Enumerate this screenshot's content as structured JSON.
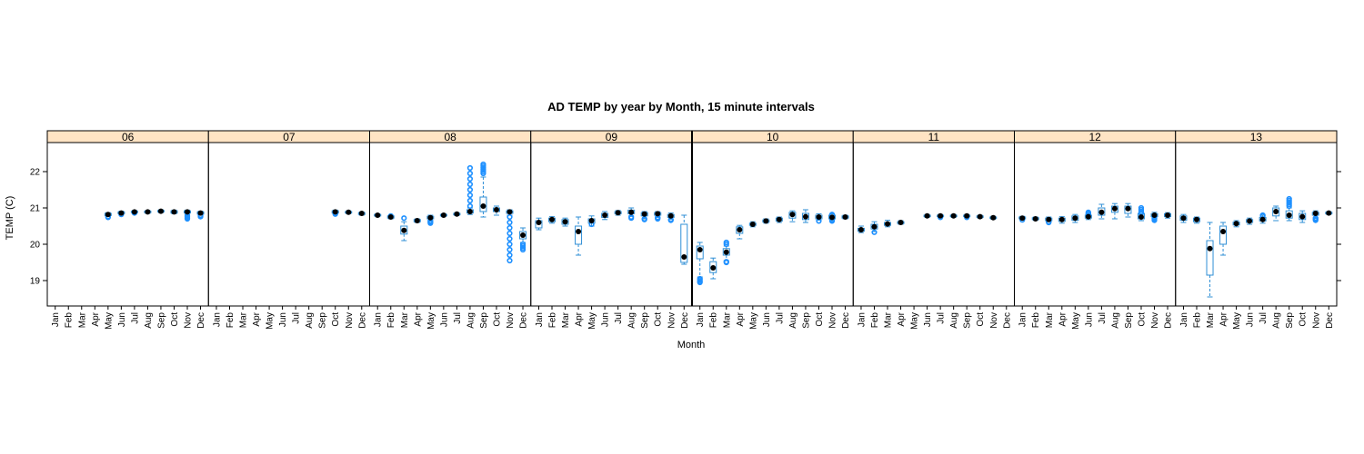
{
  "chart_data": {
    "type": "box",
    "title": "AD TEMP by year by Month, 15 minute intervals",
    "xlabel": "Month",
    "ylabel": "TEMP (C)",
    "yticks": [
      19,
      20,
      21,
      22
    ],
    "ylim": [
      18.3,
      22.8
    ],
    "months": [
      "Jan",
      "Feb",
      "Mar",
      "Apr",
      "May",
      "Jun",
      "Jul",
      "Aug",
      "Sep",
      "Oct",
      "Nov",
      "Dec"
    ],
    "colors": {
      "box": "#2f8fd6",
      "outlier": "#1e90ff",
      "median": "#000000",
      "strip_fill": "#ffe4c4",
      "border": "#000000"
    },
    "panels": [
      {
        "label": "06",
        "boxes": [
          {
            "m": 5,
            "med": 20.82,
            "q1": 20.79,
            "q3": 20.85,
            "wl": 20.76,
            "wh": 20.87,
            "out": [
              20.74,
              20.76
            ]
          },
          {
            "m": 6,
            "med": 20.86,
            "q1": 20.84,
            "q3": 20.89,
            "wl": 20.82,
            "wh": 20.91,
            "out": [
              20.82
            ]
          },
          {
            "m": 7,
            "med": 20.89,
            "q1": 20.87,
            "q3": 20.91,
            "wl": 20.85,
            "wh": 20.93,
            "out": [
              20.86
            ]
          },
          {
            "m": 8,
            "med": 20.89,
            "q1": 20.87,
            "q3": 20.91,
            "wl": 20.85,
            "wh": 20.93,
            "out": []
          },
          {
            "m": 9,
            "med": 20.91,
            "q1": 20.89,
            "q3": 20.93,
            "wl": 20.87,
            "wh": 20.95,
            "out": []
          },
          {
            "m": 10,
            "med": 20.89,
            "q1": 20.86,
            "q3": 20.92,
            "wl": 20.84,
            "wh": 20.94,
            "out": []
          },
          {
            "m": 11,
            "med": 20.89,
            "q1": 20.86,
            "q3": 20.92,
            "wl": 20.82,
            "wh": 20.94,
            "out": [
              20.7,
              20.72,
              20.74,
              20.76,
              20.78,
              20.8
            ]
          },
          {
            "m": 12,
            "med": 20.86,
            "q1": 20.83,
            "q3": 20.89,
            "wl": 20.8,
            "wh": 20.91,
            "out": [
              20.76,
              20.78,
              20.8
            ]
          }
        ]
      },
      {
        "label": "07",
        "boxes": [
          {
            "m": 10,
            "med": 20.89,
            "q1": 20.86,
            "q3": 20.92,
            "wl": 20.84,
            "wh": 20.94,
            "out": [
              20.83,
              20.85
            ]
          },
          {
            "m": 11,
            "med": 20.88,
            "q1": 20.86,
            "q3": 20.9,
            "wl": 20.84,
            "wh": 20.92,
            "out": []
          },
          {
            "m": 12,
            "med": 20.85,
            "q1": 20.82,
            "q3": 20.87,
            "wl": 20.8,
            "wh": 20.89,
            "out": []
          }
        ]
      },
      {
        "label": "08",
        "boxes": [
          {
            "m": 1,
            "med": 20.8,
            "q1": 20.78,
            "q3": 20.82,
            "wl": 20.76,
            "wh": 20.84,
            "out": []
          },
          {
            "m": 2,
            "med": 20.75,
            "q1": 20.72,
            "q3": 20.78,
            "wl": 20.7,
            "wh": 20.8,
            "out": [
              20.78
            ]
          },
          {
            "m": 3,
            "med": 20.38,
            "q1": 20.28,
            "q3": 20.5,
            "wl": 20.1,
            "wh": 20.62,
            "out": [
              20.72
            ]
          },
          {
            "m": 4,
            "med": 20.65,
            "q1": 20.62,
            "q3": 20.68,
            "wl": 20.6,
            "wh": 20.7,
            "out": []
          },
          {
            "m": 5,
            "med": 20.73,
            "q1": 20.7,
            "q3": 20.77,
            "wl": 20.66,
            "wh": 20.8,
            "out": [
              20.58,
              20.6,
              20.62,
              20.64
            ]
          },
          {
            "m": 6,
            "med": 20.8,
            "q1": 20.78,
            "q3": 20.82,
            "wl": 20.76,
            "wh": 20.84,
            "out": []
          },
          {
            "m": 7,
            "med": 20.83,
            "q1": 20.81,
            "q3": 20.85,
            "wl": 20.79,
            "wh": 20.87,
            "out": []
          },
          {
            "m": 8,
            "med": 20.9,
            "q1": 20.86,
            "q3": 20.95,
            "wl": 20.82,
            "wh": 21.0,
            "out": [
              21.05,
              21.2,
              21.35,
              21.5,
              21.65,
              21.8,
              21.95,
              22.1
            ]
          },
          {
            "m": 9,
            "med": 21.05,
            "q1": 20.9,
            "q3": 21.3,
            "wl": 20.75,
            "wh": 21.85,
            "out": [
              21.95,
              22.0,
              22.05,
              22.1,
              22.15,
              22.2
            ]
          },
          {
            "m": 10,
            "med": 20.95,
            "q1": 20.9,
            "q3": 21.0,
            "wl": 20.8,
            "wh": 21.05,
            "out": []
          },
          {
            "m": 11,
            "med": 20.89,
            "q1": 20.85,
            "q3": 20.92,
            "wl": 20.8,
            "wh": 20.95,
            "out": [
              19.55,
              19.7,
              19.85,
              20.0,
              20.15,
              20.3,
              20.45,
              20.6,
              20.75
            ]
          },
          {
            "m": 12,
            "med": 20.25,
            "q1": 20.15,
            "q3": 20.35,
            "wl": 20.05,
            "wh": 20.45,
            "out": [
              19.85,
              19.9,
              19.95,
              20.0
            ]
          }
        ]
      },
      {
        "label": "09",
        "boxes": [
          {
            "m": 1,
            "med": 20.6,
            "q1": 20.45,
            "q3": 20.65,
            "wl": 20.4,
            "wh": 20.72,
            "out": []
          },
          {
            "m": 2,
            "med": 20.68,
            "q1": 20.62,
            "q3": 20.72,
            "wl": 20.58,
            "wh": 20.76,
            "out": []
          },
          {
            "m": 3,
            "med": 20.62,
            "q1": 20.55,
            "q3": 20.68,
            "wl": 20.5,
            "wh": 20.72,
            "out": []
          },
          {
            "m": 4,
            "med": 20.35,
            "q1": 20.0,
            "q3": 20.5,
            "wl": 19.7,
            "wh": 20.75,
            "out": []
          },
          {
            "m": 5,
            "med": 20.65,
            "q1": 20.58,
            "q3": 20.7,
            "wl": 20.5,
            "wh": 20.78,
            "out": [
              20.55
            ]
          },
          {
            "m": 6,
            "med": 20.8,
            "q1": 20.74,
            "q3": 20.85,
            "wl": 20.68,
            "wh": 20.9,
            "out": []
          },
          {
            "m": 7,
            "med": 20.87,
            "q1": 20.84,
            "q3": 20.9,
            "wl": 20.8,
            "wh": 20.93,
            "out": []
          },
          {
            "m": 8,
            "med": 20.88,
            "q1": 20.84,
            "q3": 20.94,
            "wl": 20.78,
            "wh": 21.0,
            "out": [
              20.72,
              20.75
            ]
          },
          {
            "m": 9,
            "med": 20.83,
            "q1": 20.78,
            "q3": 20.87,
            "wl": 20.7,
            "wh": 20.9,
            "out": [
              20.68,
              20.7
            ]
          },
          {
            "m": 10,
            "med": 20.84,
            "q1": 20.8,
            "q3": 20.87,
            "wl": 20.74,
            "wh": 20.9,
            "out": [
              20.7,
              20.72,
              20.74
            ]
          },
          {
            "m": 11,
            "med": 20.78,
            "q1": 20.74,
            "q3": 20.82,
            "wl": 20.68,
            "wh": 20.86,
            "out": [
              20.66,
              20.68
            ]
          },
          {
            "m": 12,
            "med": 19.65,
            "q1": 19.5,
            "q3": 20.55,
            "wl": 19.45,
            "wh": 20.8,
            "out": []
          }
        ]
      },
      {
        "label": "10",
        "boxes": [
          {
            "m": 1,
            "med": 19.85,
            "q1": 19.6,
            "q3": 19.95,
            "wl": 19.1,
            "wh": 20.05,
            "out": [
              18.95,
              18.98,
              19.02,
              19.05
            ]
          },
          {
            "m": 2,
            "med": 19.35,
            "q1": 19.22,
            "q3": 19.52,
            "wl": 19.05,
            "wh": 19.62,
            "out": []
          },
          {
            "m": 3,
            "med": 19.78,
            "q1": 19.7,
            "q3": 19.88,
            "wl": 19.55,
            "wh": 19.95,
            "out": [
              19.5,
              19.52,
              20.0,
              20.05
            ]
          },
          {
            "m": 4,
            "med": 20.4,
            "q1": 20.3,
            "q3": 20.48,
            "wl": 20.15,
            "wh": 20.52,
            "out": []
          },
          {
            "m": 5,
            "med": 20.55,
            "q1": 20.52,
            "q3": 20.58,
            "wl": 20.48,
            "wh": 20.62,
            "out": []
          },
          {
            "m": 6,
            "med": 20.64,
            "q1": 20.61,
            "q3": 20.67,
            "wl": 20.58,
            "wh": 20.7,
            "out": []
          },
          {
            "m": 7,
            "med": 20.68,
            "q1": 20.64,
            "q3": 20.72,
            "wl": 20.6,
            "wh": 20.75,
            "out": []
          },
          {
            "m": 8,
            "med": 20.82,
            "q1": 20.72,
            "q3": 20.88,
            "wl": 20.62,
            "wh": 20.92,
            "out": []
          },
          {
            "m": 9,
            "med": 20.76,
            "q1": 20.68,
            "q3": 20.85,
            "wl": 20.6,
            "wh": 20.95,
            "out": []
          },
          {
            "m": 10,
            "med": 20.75,
            "q1": 20.7,
            "q3": 20.8,
            "wl": 20.66,
            "wh": 20.84,
            "out": [
              20.64
            ]
          },
          {
            "m": 11,
            "med": 20.74,
            "q1": 20.7,
            "q3": 20.8,
            "wl": 20.66,
            "wh": 20.84,
            "out": [
              20.64,
              20.66,
              20.68,
              20.8,
              20.82
            ]
          },
          {
            "m": 12,
            "med": 20.75,
            "q1": 20.72,
            "q3": 20.78,
            "wl": 20.7,
            "wh": 20.8,
            "out": []
          }
        ]
      },
      {
        "label": "11",
        "boxes": [
          {
            "m": 1,
            "med": 20.4,
            "q1": 20.36,
            "q3": 20.44,
            "wl": 20.32,
            "wh": 20.5,
            "out": []
          },
          {
            "m": 2,
            "med": 20.48,
            "q1": 20.42,
            "q3": 20.55,
            "wl": 20.35,
            "wh": 20.62,
            "out": [
              20.33
            ]
          },
          {
            "m": 3,
            "med": 20.56,
            "q1": 20.52,
            "q3": 20.6,
            "wl": 20.48,
            "wh": 20.66,
            "out": []
          },
          {
            "m": 4,
            "med": 20.6,
            "q1": 20.57,
            "q3": 20.62,
            "wl": 20.55,
            "wh": 20.65,
            "out": []
          },
          {
            "m": 6,
            "med": 20.78,
            "q1": 20.76,
            "q3": 20.8,
            "wl": 20.74,
            "wh": 20.82,
            "out": []
          },
          {
            "m": 7,
            "med": 20.78,
            "q1": 20.76,
            "q3": 20.8,
            "wl": 20.74,
            "wh": 20.82,
            "out": [
              20.74
            ]
          },
          {
            "m": 8,
            "med": 20.78,
            "q1": 20.76,
            "q3": 20.8,
            "wl": 20.74,
            "wh": 20.82,
            "out": []
          },
          {
            "m": 9,
            "med": 20.78,
            "q1": 20.76,
            "q3": 20.8,
            "wl": 20.74,
            "wh": 20.82,
            "out": [
              20.74
            ]
          },
          {
            "m": 10,
            "med": 20.76,
            "q1": 20.74,
            "q3": 20.78,
            "wl": 20.72,
            "wh": 20.8,
            "out": []
          },
          {
            "m": 11,
            "med": 20.73,
            "q1": 20.71,
            "q3": 20.75,
            "wl": 20.69,
            "wh": 20.77,
            "out": []
          }
        ]
      },
      {
        "label": "12",
        "boxes": [
          {
            "m": 1,
            "med": 20.72,
            "q1": 20.7,
            "q3": 20.75,
            "wl": 20.68,
            "wh": 20.77,
            "out": [
              20.67
            ]
          },
          {
            "m": 2,
            "med": 20.7,
            "q1": 20.68,
            "q3": 20.73,
            "wl": 20.66,
            "wh": 20.75,
            "out": []
          },
          {
            "m": 3,
            "med": 20.68,
            "q1": 20.65,
            "q3": 20.72,
            "wl": 20.62,
            "wh": 20.75,
            "out": [
              20.6,
              20.62
            ]
          },
          {
            "m": 4,
            "med": 20.68,
            "q1": 20.63,
            "q3": 20.72,
            "wl": 20.58,
            "wh": 20.76,
            "out": []
          },
          {
            "m": 5,
            "med": 20.72,
            "q1": 20.66,
            "q3": 20.78,
            "wl": 20.6,
            "wh": 20.82,
            "out": []
          },
          {
            "m": 6,
            "med": 20.76,
            "q1": 20.72,
            "q3": 20.8,
            "wl": 20.68,
            "wh": 20.84,
            "out": [
              20.82,
              20.84,
              20.86,
              20.88
            ]
          },
          {
            "m": 7,
            "med": 20.88,
            "q1": 20.8,
            "q3": 21.0,
            "wl": 20.7,
            "wh": 21.1,
            "out": []
          },
          {
            "m": 8,
            "med": 20.98,
            "q1": 20.88,
            "q3": 21.05,
            "wl": 20.7,
            "wh": 21.12,
            "out": []
          },
          {
            "m": 9,
            "med": 20.98,
            "q1": 20.85,
            "q3": 21.05,
            "wl": 20.75,
            "wh": 21.12,
            "out": []
          },
          {
            "m": 10,
            "med": 20.75,
            "q1": 20.7,
            "q3": 20.85,
            "wl": 20.65,
            "wh": 20.95,
            "out": [
              20.85,
              20.9,
              20.95,
              21.0
            ]
          },
          {
            "m": 11,
            "med": 20.8,
            "q1": 20.76,
            "q3": 20.84,
            "wl": 20.7,
            "wh": 20.88,
            "out": [
              20.66,
              20.68,
              20.7,
              20.72,
              20.74
            ]
          },
          {
            "m": 12,
            "med": 20.8,
            "q1": 20.76,
            "q3": 20.84,
            "wl": 20.72,
            "wh": 20.87,
            "out": []
          }
        ]
      },
      {
        "label": "13",
        "boxes": [
          {
            "m": 1,
            "med": 20.72,
            "q1": 20.66,
            "q3": 20.78,
            "wl": 20.6,
            "wh": 20.82,
            "out": []
          },
          {
            "m": 2,
            "med": 20.68,
            "q1": 20.62,
            "q3": 20.72,
            "wl": 20.58,
            "wh": 20.75,
            "out": []
          },
          {
            "m": 3,
            "med": 19.88,
            "q1": 19.15,
            "q3": 20.1,
            "wl": 18.55,
            "wh": 20.6,
            "out": []
          },
          {
            "m": 4,
            "med": 20.35,
            "q1": 20.0,
            "q3": 20.5,
            "wl": 19.7,
            "wh": 20.6,
            "out": []
          },
          {
            "m": 5,
            "med": 20.57,
            "q1": 20.53,
            "q3": 20.61,
            "wl": 20.48,
            "wh": 20.65,
            "out": []
          },
          {
            "m": 6,
            "med": 20.64,
            "q1": 20.6,
            "q3": 20.68,
            "wl": 20.55,
            "wh": 20.72,
            "out": []
          },
          {
            "m": 7,
            "med": 20.68,
            "q1": 20.64,
            "q3": 20.74,
            "wl": 20.58,
            "wh": 20.8,
            "out": [
              20.78,
              20.8
            ]
          },
          {
            "m": 8,
            "med": 20.9,
            "q1": 20.78,
            "q3": 21.0,
            "wl": 20.65,
            "wh": 21.05,
            "out": []
          },
          {
            "m": 9,
            "med": 20.8,
            "q1": 20.72,
            "q3": 20.92,
            "wl": 20.65,
            "wh": 21.0,
            "out": [
              21.05,
              21.1,
              21.15,
              21.2,
              21.25
            ]
          },
          {
            "m": 10,
            "med": 20.76,
            "q1": 20.68,
            "q3": 20.85,
            "wl": 20.6,
            "wh": 20.92,
            "out": []
          },
          {
            "m": 11,
            "med": 20.85,
            "q1": 20.8,
            "q3": 20.88,
            "wl": 20.74,
            "wh": 20.92,
            "out": [
              20.66,
              20.68,
              20.7,
              20.72
            ]
          },
          {
            "m": 12,
            "med": 20.86,
            "q1": 20.84,
            "q3": 20.88,
            "wl": 20.82,
            "wh": 20.9,
            "out": []
          }
        ]
      }
    ]
  }
}
